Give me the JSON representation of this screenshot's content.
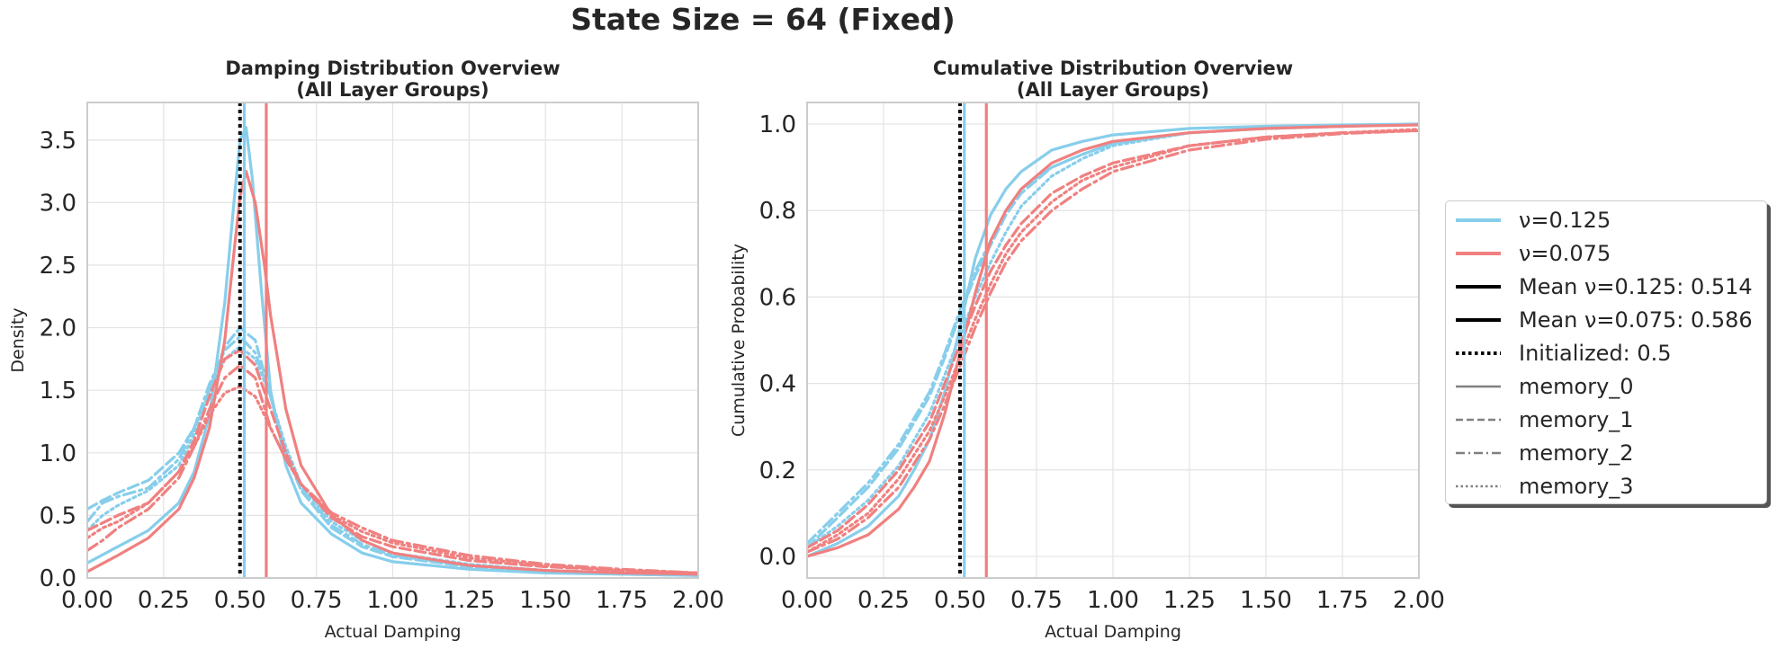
{
  "suptitle": "State Size = 64 (Fixed)",
  "colors": {
    "nu_0125": "#87CEEB",
    "nu_0075": "#F08080",
    "init": "#111111",
    "group": "#808080",
    "grid": "#e3e3e3",
    "spine": "#cccccc"
  },
  "legend": {
    "items": [
      {
        "label": "ν=0.125",
        "color": "#87CEEB",
        "style": "solid",
        "weight": "thick"
      },
      {
        "label": "ν=0.075",
        "color": "#F08080",
        "style": "solid",
        "weight": "thick"
      },
      {
        "label": "Mean ν=0.125: 0.514",
        "color": "#000000",
        "style": "solid",
        "weight": "thick"
      },
      {
        "label": "Mean ν=0.075: 0.586",
        "color": "#000000",
        "style": "solid",
        "weight": "thick"
      },
      {
        "label": "Initialized: 0.5",
        "color": "#000000",
        "style": "dotted",
        "weight": "thick"
      },
      {
        "label": "memory_0",
        "color": "#808080",
        "style": "solid",
        "weight": "thin"
      },
      {
        "label": "memory_1",
        "color": "#808080",
        "style": "dashed",
        "weight": "thin"
      },
      {
        "label": "memory_2",
        "color": "#808080",
        "style": "dashdot",
        "weight": "thin"
      },
      {
        "label": "memory_3",
        "color": "#808080",
        "style": "dotted",
        "weight": "thin"
      }
    ]
  },
  "chart_data": [
    {
      "type": "line",
      "title_line1": "Damping Distribution Overview",
      "title_line2": "(All Layer Groups)",
      "xlabel": "Actual Damping",
      "ylabel": "Density",
      "xlim": [
        0,
        2
      ],
      "ylim": [
        0,
        3.8
      ],
      "xticks": [
        0,
        0.25,
        0.5,
        0.75,
        1.0,
        1.25,
        1.5,
        1.75,
        2.0
      ],
      "xtick_labels": [
        "0.00",
        "0.25",
        "0.50",
        "0.75",
        "1.00",
        "1.25",
        "1.50",
        "1.75",
        "2.00"
      ],
      "yticks": [
        0,
        0.5,
        1.0,
        1.5,
        2.0,
        2.5,
        3.0,
        3.5
      ],
      "ytick_labels": [
        "0.0",
        "0.5",
        "1.0",
        "1.5",
        "2.0",
        "2.5",
        "3.0",
        "3.5"
      ],
      "vlines": [
        {
          "name": "mean-nu-0125",
          "x": 0.514,
          "color": "#87CEEB",
          "style": "solid"
        },
        {
          "name": "mean-nu-0075",
          "x": 0.586,
          "color": "#F08080",
          "style": "solid"
        },
        {
          "name": "initialized",
          "x": 0.5,
          "color": "#111111",
          "style": "dotted"
        }
      ],
      "series": [
        {
          "name": "ν=0.125 memory_0",
          "color": "#87CEEB",
          "style": "solid",
          "x": [
            0,
            0.1,
            0.2,
            0.3,
            0.35,
            0.4,
            0.45,
            0.48,
            0.5,
            0.52,
            0.54,
            0.57,
            0.6,
            0.65,
            0.7,
            0.8,
            0.9,
            1.0,
            1.25,
            1.5,
            1.75,
            2.0
          ],
          "y": [
            0.12,
            0.25,
            0.38,
            0.6,
            0.85,
            1.3,
            2.2,
            3.0,
            3.5,
            3.6,
            3.2,
            2.3,
            1.5,
            0.9,
            0.6,
            0.35,
            0.2,
            0.13,
            0.07,
            0.04,
            0.03,
            0.02
          ]
        },
        {
          "name": "ν=0.125 memory_1",
          "color": "#87CEEB",
          "style": "dashed",
          "x": [
            0,
            0.05,
            0.1,
            0.2,
            0.3,
            0.35,
            0.4,
            0.45,
            0.5,
            0.55,
            0.6,
            0.65,
            0.7,
            0.8,
            0.9,
            1.0,
            1.25,
            1.5,
            1.75,
            2.0
          ],
          "y": [
            0.55,
            0.62,
            0.68,
            0.78,
            1.0,
            1.2,
            1.5,
            1.85,
            2.0,
            1.9,
            1.45,
            1.0,
            0.7,
            0.4,
            0.25,
            0.17,
            0.09,
            0.05,
            0.03,
            0.02
          ]
        },
        {
          "name": "ν=0.125 memory_2",
          "color": "#87CEEB",
          "style": "dashdot",
          "x": [
            0,
            0.05,
            0.1,
            0.2,
            0.3,
            0.35,
            0.4,
            0.45,
            0.5,
            0.55,
            0.6,
            0.65,
            0.7,
            0.8,
            0.9,
            1.0,
            1.25,
            1.5,
            1.75,
            2.0
          ],
          "y": [
            0.45,
            0.6,
            0.65,
            0.72,
            0.95,
            1.2,
            1.55,
            1.82,
            1.93,
            1.8,
            1.45,
            1.0,
            0.72,
            0.42,
            0.27,
            0.18,
            0.1,
            0.06,
            0.04,
            0.02
          ]
        },
        {
          "name": "ν=0.125 memory_3",
          "color": "#87CEEB",
          "style": "dotted",
          "x": [
            0,
            0.05,
            0.1,
            0.2,
            0.3,
            0.35,
            0.4,
            0.45,
            0.5,
            0.55,
            0.6,
            0.65,
            0.7,
            0.8,
            0.9,
            1.0,
            1.25,
            1.5,
            1.75,
            2.0
          ],
          "y": [
            0.38,
            0.5,
            0.58,
            0.7,
            0.9,
            1.15,
            1.5,
            1.75,
            1.85,
            1.75,
            1.45,
            1.05,
            0.75,
            0.45,
            0.3,
            0.2,
            0.11,
            0.06,
            0.04,
            0.02
          ]
        },
        {
          "name": "ν=0.075 memory_0",
          "color": "#F08080",
          "style": "solid",
          "x": [
            0,
            0.1,
            0.2,
            0.3,
            0.35,
            0.4,
            0.45,
            0.48,
            0.5,
            0.52,
            0.55,
            0.58,
            0.6,
            0.65,
            0.7,
            0.8,
            0.9,
            1.0,
            1.25,
            1.5,
            1.75,
            2.0
          ],
          "y": [
            0.05,
            0.18,
            0.32,
            0.55,
            0.8,
            1.2,
            1.9,
            2.6,
            3.05,
            3.25,
            3.0,
            2.5,
            2.1,
            1.35,
            0.9,
            0.5,
            0.3,
            0.2,
            0.1,
            0.06,
            0.04,
            0.03
          ]
        },
        {
          "name": "ν=0.075 memory_1",
          "color": "#F08080",
          "style": "dashed",
          "x": [
            0,
            0.1,
            0.2,
            0.3,
            0.35,
            0.4,
            0.45,
            0.5,
            0.55,
            0.6,
            0.65,
            0.7,
            0.8,
            0.9,
            1.0,
            1.25,
            1.5,
            1.75,
            2.0
          ],
          "y": [
            0.38,
            0.5,
            0.6,
            0.85,
            1.1,
            1.45,
            1.75,
            1.82,
            1.7,
            1.35,
            1.0,
            0.75,
            0.48,
            0.33,
            0.25,
            0.14,
            0.09,
            0.06,
            0.04
          ]
        },
        {
          "name": "ν=0.075 memory_2",
          "color": "#F08080",
          "style": "dashdot",
          "x": [
            0,
            0.05,
            0.1,
            0.2,
            0.3,
            0.35,
            0.4,
            0.45,
            0.5,
            0.55,
            0.6,
            0.65,
            0.7,
            0.8,
            0.9,
            1.0,
            1.25,
            1.5,
            1.75,
            2.0
          ],
          "y": [
            0.22,
            0.3,
            0.4,
            0.55,
            0.8,
            1.05,
            1.35,
            1.6,
            1.7,
            1.6,
            1.2,
            0.95,
            0.75,
            0.52,
            0.4,
            0.3,
            0.18,
            0.11,
            0.07,
            0.04
          ]
        },
        {
          "name": "ν=0.075 memory_3",
          "color": "#F08080",
          "style": "dotted",
          "x": [
            0,
            0.05,
            0.1,
            0.2,
            0.3,
            0.35,
            0.4,
            0.45,
            0.5,
            0.55,
            0.6,
            0.65,
            0.7,
            0.8,
            0.9,
            1.0,
            1.25,
            1.5,
            1.75,
            2.0
          ],
          "y": [
            0.32,
            0.4,
            0.45,
            0.6,
            0.85,
            1.05,
            1.3,
            1.48,
            1.53,
            1.45,
            1.2,
            0.95,
            0.75,
            0.5,
            0.37,
            0.28,
            0.16,
            0.1,
            0.06,
            0.04
          ]
        }
      ]
    },
    {
      "type": "line",
      "title_line1": "Cumulative Distribution Overview",
      "title_line2": "(All Layer Groups)",
      "xlabel": "Actual Damping",
      "ylabel": "Cumulative Probability",
      "xlim": [
        0,
        2
      ],
      "ylim": [
        -0.05,
        1.05
      ],
      "xticks": [
        0,
        0.25,
        0.5,
        0.75,
        1.0,
        1.25,
        1.5,
        1.75,
        2.0
      ],
      "xtick_labels": [
        "0.00",
        "0.25",
        "0.50",
        "0.75",
        "1.00",
        "1.25",
        "1.50",
        "1.75",
        "2.00"
      ],
      "yticks": [
        0,
        0.2,
        0.4,
        0.6,
        0.8,
        1.0
      ],
      "ytick_labels": [
        "0.0",
        "0.2",
        "0.4",
        "0.6",
        "0.8",
        "1.0"
      ],
      "vlines": [
        {
          "name": "mean-nu-0125",
          "x": 0.514,
          "color": "#87CEEB",
          "style": "solid"
        },
        {
          "name": "mean-nu-0075",
          "x": 0.586,
          "color": "#F08080",
          "style": "solid"
        },
        {
          "name": "initialized",
          "x": 0.5,
          "color": "#111111",
          "style": "dotted"
        }
      ],
      "series": [
        {
          "name": "ν=0.125 memory_0",
          "color": "#87CEEB",
          "style": "solid",
          "x": [
            0,
            0.1,
            0.2,
            0.3,
            0.35,
            0.4,
            0.45,
            0.5,
            0.55,
            0.6,
            0.65,
            0.7,
            0.8,
            0.9,
            1.0,
            1.25,
            1.5,
            1.75,
            2.0
          ],
          "y": [
            0.0,
            0.03,
            0.07,
            0.14,
            0.2,
            0.27,
            0.38,
            0.53,
            0.69,
            0.79,
            0.85,
            0.89,
            0.94,
            0.96,
            0.975,
            0.99,
            0.995,
            0.998,
            1.0
          ]
        },
        {
          "name": "ν=0.125 memory_1",
          "color": "#87CEEB",
          "style": "dashed",
          "x": [
            0,
            0.1,
            0.2,
            0.3,
            0.4,
            0.45,
            0.5,
            0.55,
            0.6,
            0.65,
            0.7,
            0.8,
            0.9,
            1.0,
            1.25,
            1.5,
            1.75,
            2.0
          ],
          "y": [
            0.02,
            0.09,
            0.16,
            0.25,
            0.37,
            0.46,
            0.56,
            0.65,
            0.72,
            0.79,
            0.84,
            0.9,
            0.93,
            0.955,
            0.98,
            0.99,
            0.995,
            1.0
          ]
        },
        {
          "name": "ν=0.125 memory_2",
          "color": "#87CEEB",
          "style": "dashdot",
          "x": [
            0,
            0.1,
            0.2,
            0.3,
            0.4,
            0.45,
            0.5,
            0.55,
            0.6,
            0.65,
            0.7,
            0.8,
            0.9,
            1.0,
            1.25,
            1.5,
            1.75,
            2.0
          ],
          "y": [
            0.03,
            0.1,
            0.17,
            0.26,
            0.38,
            0.47,
            0.57,
            0.66,
            0.73,
            0.8,
            0.85,
            0.9,
            0.93,
            0.955,
            0.98,
            0.99,
            0.995,
            1.0
          ]
        },
        {
          "name": "ν=0.125 memory_3",
          "color": "#87CEEB",
          "style": "dotted",
          "x": [
            0,
            0.1,
            0.2,
            0.3,
            0.4,
            0.45,
            0.5,
            0.55,
            0.6,
            0.65,
            0.7,
            0.8,
            0.9,
            1.0,
            1.25,
            1.5,
            1.75,
            2.0
          ],
          "y": [
            0.02,
            0.07,
            0.13,
            0.21,
            0.33,
            0.42,
            0.51,
            0.6,
            0.68,
            0.75,
            0.81,
            0.88,
            0.92,
            0.95,
            0.98,
            0.99,
            0.995,
            1.0
          ]
        },
        {
          "name": "ν=0.075 memory_0",
          "color": "#F08080",
          "style": "solid",
          "x": [
            0,
            0.1,
            0.2,
            0.3,
            0.35,
            0.4,
            0.45,
            0.5,
            0.55,
            0.6,
            0.65,
            0.7,
            0.8,
            0.9,
            1.0,
            1.25,
            1.5,
            1.75,
            2.0
          ],
          "y": [
            0.0,
            0.02,
            0.05,
            0.11,
            0.16,
            0.22,
            0.33,
            0.47,
            0.61,
            0.73,
            0.8,
            0.85,
            0.91,
            0.94,
            0.96,
            0.98,
            0.99,
            0.995,
            0.998
          ]
        },
        {
          "name": "ν=0.075 memory_1",
          "color": "#F08080",
          "style": "dashed",
          "x": [
            0,
            0.1,
            0.2,
            0.3,
            0.4,
            0.45,
            0.5,
            0.55,
            0.6,
            0.65,
            0.7,
            0.8,
            0.9,
            1.0,
            1.25,
            1.5,
            1.75,
            2.0
          ],
          "y": [
            0.02,
            0.06,
            0.12,
            0.2,
            0.31,
            0.4,
            0.49,
            0.58,
            0.66,
            0.72,
            0.77,
            0.84,
            0.88,
            0.91,
            0.95,
            0.97,
            0.98,
            0.985
          ]
        },
        {
          "name": "ν=0.075 memory_2",
          "color": "#F08080",
          "style": "dashdot",
          "x": [
            0,
            0.1,
            0.2,
            0.3,
            0.4,
            0.45,
            0.5,
            0.55,
            0.6,
            0.65,
            0.7,
            0.8,
            0.9,
            1.0,
            1.25,
            1.5,
            1.75,
            2.0
          ],
          "y": [
            0.01,
            0.04,
            0.09,
            0.16,
            0.27,
            0.35,
            0.44,
            0.53,
            0.61,
            0.68,
            0.73,
            0.8,
            0.85,
            0.89,
            0.94,
            0.965,
            0.978,
            0.985
          ]
        },
        {
          "name": "ν=0.075 memory_3",
          "color": "#F08080",
          "style": "dotted",
          "x": [
            0,
            0.1,
            0.2,
            0.3,
            0.4,
            0.45,
            0.5,
            0.55,
            0.6,
            0.65,
            0.7,
            0.8,
            0.9,
            1.0,
            1.25,
            1.5,
            1.75,
            2.0
          ],
          "y": [
            0.01,
            0.05,
            0.1,
            0.18,
            0.29,
            0.37,
            0.46,
            0.55,
            0.63,
            0.7,
            0.75,
            0.82,
            0.87,
            0.9,
            0.95,
            0.97,
            0.98,
            0.988
          ]
        }
      ]
    }
  ]
}
